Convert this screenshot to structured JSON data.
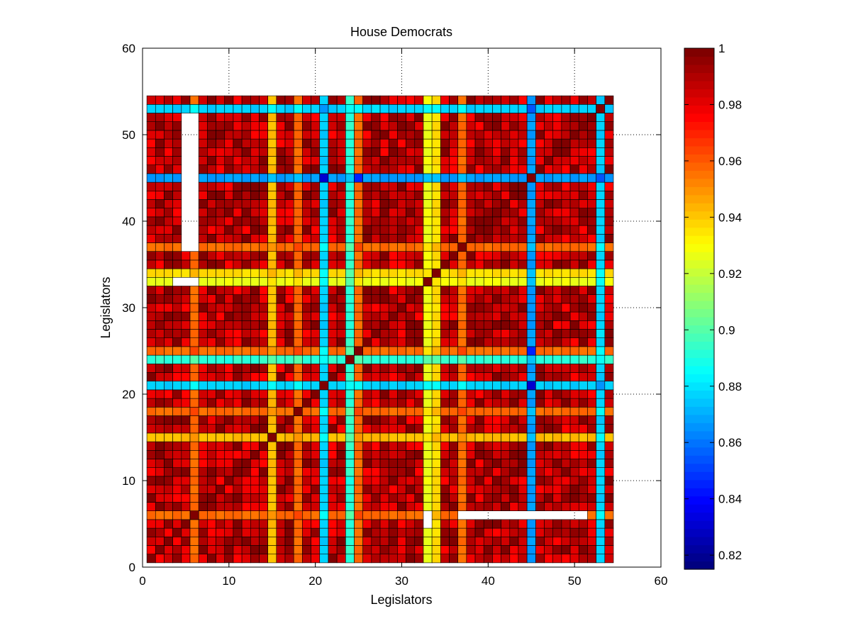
{
  "chart_data": {
    "type": "heatmap",
    "title": "House Democrats",
    "xlabel": "Legislators",
    "ylabel": "Legislators",
    "xlim": [
      0,
      60
    ],
    "ylim": [
      0,
      60
    ],
    "xticks": [
      "0",
      "10",
      "20",
      "30",
      "40",
      "50",
      "60"
    ],
    "yticks": [
      "0",
      "10",
      "20",
      "30",
      "40",
      "50",
      "60"
    ],
    "grid": "dotted",
    "cell_range": [
      1,
      54
    ],
    "colorbar": {
      "colormap": "jet",
      "clim": [
        0.815,
        1.0
      ],
      "ticks": [
        "0.82",
        "0.84",
        "0.86",
        "0.88",
        "0.9",
        "0.92",
        "0.94",
        "0.96",
        "0.98",
        "1"
      ],
      "placement": "right"
    },
    "matrix_structure": {
      "diagonal_value": 1.0,
      "base_value_range": [
        0.975,
        1.0
      ],
      "row_column_profiles": [
        {
          "index": 53,
          "value": 0.875
        },
        {
          "index": 45,
          "value": 0.865
        },
        {
          "index": 37,
          "value": 0.955
        },
        {
          "index": 34,
          "value": 0.935
        },
        {
          "index": 25,
          "value": 0.955
        },
        {
          "index": 21,
          "value": 0.875
        },
        {
          "index": 18,
          "value": 0.955
        },
        {
          "index": 15,
          "value": 0.94
        },
        {
          "index": 6,
          "value": 0.955
        },
        {
          "index": 33,
          "value": 0.925
        },
        {
          "index": 24,
          "value": 0.89
        }
      ],
      "pair_overrides": [
        {
          "i": 21,
          "j": 45,
          "value": 0.83
        },
        {
          "i": 25,
          "j": 45,
          "value": 0.845
        },
        {
          "i": 53,
          "j": 45,
          "value": 0.855
        },
        {
          "i": 21,
          "j": 53,
          "value": 0.865
        }
      ],
      "missing_regions": [
        {
          "x": [
            5,
            6
          ],
          "y": [
            37,
            52
          ]
        },
        {
          "x": [
            4,
            6
          ],
          "y": [
            33,
            33
          ]
        },
        {
          "x": [
            33,
            33
          ],
          "y": [
            5,
            6
          ]
        },
        {
          "x": [
            37,
            51
          ],
          "y": [
            6,
            6
          ]
        }
      ]
    }
  }
}
